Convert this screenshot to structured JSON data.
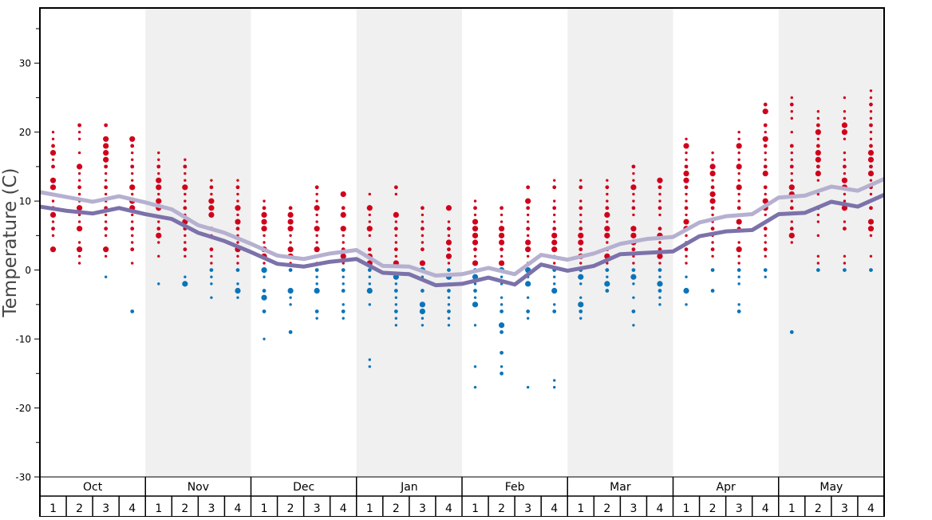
{
  "chart_data": {
    "type": "scatter",
    "ylabel": "Temperature (C)",
    "ylim": [
      -30,
      38
    ],
    "yticks": [
      -30,
      -20,
      -10,
      0,
      10,
      20,
      30
    ],
    "months": [
      "Oct",
      "Nov",
      "Dec",
      "Jan",
      "Feb",
      "Mar",
      "Apr",
      "May"
    ],
    "shaded_months": [
      "Nov",
      "Jan",
      "Mar",
      "May"
    ],
    "week_labels": [
      "1",
      "2",
      "3",
      "4"
    ],
    "colors": {
      "warm": "#d0021b",
      "cold": "#0a74b9",
      "line_light": "#b6b0d0",
      "line_dark": "#7c72aa",
      "shade": "#f0f0f0"
    },
    "line_light": [
      11.3,
      10.6,
      9.9,
      10.7,
      9.8,
      8.8,
      6.5,
      5.4,
      3.8,
      2.1,
      1.6,
      2.4,
      2.9,
      0.6,
      0.5,
      -0.8,
      -0.6,
      0.3,
      -0.6,
      2.2,
      1.5,
      2.4,
      3.8,
      4.5,
      4.8,
      6.9,
      7.8,
      8.1,
      10.5,
      10.8,
      12.1,
      11.5,
      13.2
    ],
    "line_dark": [
      9.2,
      8.6,
      8.2,
      9.0,
      8.1,
      7.4,
      5.4,
      4.2,
      2.6,
      0.9,
      0.5,
      1.2,
      1.6,
      -0.4,
      -0.6,
      -2.2,
      -2.0,
      -1.1,
      -2.1,
      0.8,
      -0.1,
      0.6,
      2.3,
      2.5,
      2.7,
      4.9,
      5.6,
      5.8,
      8.1,
      8.3,
      9.9,
      9.2,
      10.9
    ],
    "weeks": [
      {
        "warm": [
          20,
          19,
          18,
          17,
          16,
          15,
          13,
          12,
          11,
          10,
          9,
          8,
          7,
          6,
          5,
          3
        ],
        "cold": [],
        "large": [
          17,
          13,
          12,
          8,
          3
        ]
      },
      {
        "warm": [
          21,
          20,
          19,
          17,
          15,
          14,
          13,
          12,
          11,
          10,
          9,
          8,
          7,
          6,
          4,
          3,
          2,
          1
        ],
        "cold": [],
        "large": [
          15,
          9,
          6,
          3
        ]
      },
      {
        "warm": [
          21,
          19,
          18,
          17,
          16,
          15,
          14,
          13,
          12,
          11,
          10,
          9,
          8,
          7,
          6,
          5,
          3,
          2
        ],
        "cold": [
          -1
        ],
        "large": [
          19,
          18,
          17,
          16,
          3
        ]
      },
      {
        "warm": [
          19,
          18,
          17,
          16,
          15,
          14,
          13,
          12,
          11,
          10,
          9,
          8,
          7,
          6,
          5,
          4,
          3,
          1
        ],
        "cold": [
          -6
        ],
        "large": [
          19,
          12,
          10,
          9
        ]
      },
      {
        "warm": [
          17,
          16,
          15,
          14,
          13,
          12,
          11,
          10,
          9,
          7,
          6,
          5,
          4,
          2
        ],
        "cold": [
          -2
        ],
        "large": [
          13,
          12,
          10,
          9,
          5
        ]
      },
      {
        "warm": [
          16,
          15,
          14,
          13,
          12,
          11,
          10,
          9,
          8,
          7,
          6,
          5,
          4,
          3,
          2
        ],
        "cold": [
          -1,
          -2
        ],
        "large": [
          12,
          7,
          -2
        ]
      },
      {
        "warm": [
          13,
          12,
          11,
          10,
          9,
          8,
          6,
          5,
          3,
          2,
          1
        ],
        "cold": [
          0,
          -1,
          -2,
          -4
        ],
        "large": [
          10,
          9,
          8
        ]
      },
      {
        "warm": [
          13,
          12,
          11,
          10,
          9,
          8,
          7,
          6,
          5,
          4,
          3,
          2,
          1
        ],
        "cold": [
          0,
          -2,
          -3,
          -4
        ],
        "large": [
          9,
          7,
          3,
          -3
        ]
      },
      {
        "warm": [
          10,
          9,
          8,
          7,
          6,
          5,
          4,
          3,
          2,
          1
        ],
        "cold": [
          0,
          -1,
          -3,
          -4,
          -6,
          -10
        ],
        "large": [
          8,
          7,
          6,
          3,
          2,
          0,
          -4
        ]
      },
      {
        "warm": [
          9,
          8,
          7,
          6,
          5,
          4,
          3,
          2,
          1
        ],
        "cold": [
          0,
          -3,
          -4,
          -5,
          -9
        ],
        "large": [
          8,
          7,
          6,
          3,
          2,
          -3
        ]
      },
      {
        "warm": [
          12,
          11,
          10,
          9,
          8,
          7,
          6,
          5,
          4,
          3,
          2,
          1
        ],
        "cold": [
          0,
          -1,
          -2,
          -3,
          -6,
          -7
        ],
        "large": [
          9,
          6,
          3,
          -3
        ]
      },
      {
        "warm": [
          11,
          9,
          8,
          6,
          5,
          4,
          3,
          2,
          1
        ],
        "cold": [
          0,
          -1,
          -2,
          -3,
          -5,
          -6,
          -7
        ],
        "large": [
          11,
          8,
          6,
          2
        ]
      },
      {
        "warm": [
          11,
          9,
          8,
          7,
          6,
          5,
          3,
          2,
          1
        ],
        "cold": [
          0,
          -1,
          -2,
          -3,
          -5,
          -13,
          -14
        ],
        "large": [
          9,
          6,
          2,
          1,
          -3
        ]
      },
      {
        "warm": [
          12,
          11,
          8,
          7,
          6,
          5,
          4,
          3,
          2,
          1
        ],
        "cold": [
          -1,
          -2,
          -3,
          -4,
          -5,
          -6,
          -7,
          -8
        ],
        "large": [
          8,
          1,
          -1
        ]
      },
      {
        "warm": [
          9,
          8,
          7,
          6,
          5,
          4,
          3,
          1
        ],
        "cold": [
          0,
          -1,
          -3,
          -5,
          -6,
          -7,
          -8
        ],
        "large": [
          1,
          0,
          -5,
          -6
        ]
      },
      {
        "warm": [
          9,
          7,
          6,
          5,
          4,
          3,
          2,
          1
        ],
        "cold": [
          0,
          -1,
          -2,
          -3,
          -4,
          -5,
          -6,
          -7,
          -8
        ],
        "large": [
          9,
          4,
          2,
          -1
        ]
      },
      {
        "warm": [
          10,
          9,
          8,
          7,
          6,
          5,
          4,
          3,
          2,
          1
        ],
        "cold": [
          0,
          -1,
          -2,
          -3,
          -4,
          -5,
          -8,
          -14,
          -17
        ],
        "large": [
          7,
          6,
          5,
          4,
          1,
          -1,
          -5
        ]
      },
      {
        "warm": [
          9,
          8,
          7,
          6,
          5,
          4,
          3,
          2,
          1
        ],
        "cold": [
          0,
          -1,
          -2,
          -4,
          -5,
          -6,
          -8,
          -9,
          -12,
          -14,
          -15
        ],
        "large": [
          6,
          5,
          4,
          1,
          0,
          -8
        ]
      },
      {
        "warm": [
          12,
          10,
          9,
          8,
          7,
          6,
          5,
          4,
          3,
          2,
          1
        ],
        "cold": [
          0,
          -1,
          -2,
          -4,
          -6,
          -7,
          -17
        ],
        "large": [
          10,
          4,
          3,
          0,
          -2
        ]
      },
      {
        "warm": [
          13,
          12,
          10,
          9,
          8,
          7,
          6,
          5,
          4,
          3,
          2,
          1
        ],
        "cold": [
          0,
          -1,
          -2,
          -3,
          -5,
          -6,
          -16,
          -17
        ],
        "large": [
          5,
          4,
          3,
          -3
        ]
      },
      {
        "warm": [
          13,
          12,
          10,
          9,
          8,
          7,
          6,
          5,
          4,
          3,
          2,
          1
        ],
        "cold": [
          0,
          -1,
          -2,
          -4,
          -5,
          -6,
          -7
        ],
        "large": [
          5,
          4,
          2,
          -1,
          -5
        ]
      },
      {
        "warm": [
          13,
          12,
          11,
          10,
          9,
          8,
          7,
          6,
          5,
          4,
          3,
          2,
          1
        ],
        "cold": [
          0,
          -1,
          -2,
          -3
        ],
        "large": [
          8,
          6,
          5,
          2,
          -2
        ]
      },
      {
        "warm": [
          15,
          14,
          13,
          12,
          11,
          10,
          9,
          8,
          6,
          5,
          4,
          3,
          2,
          1
        ],
        "cold": [
          0,
          -1,
          -2,
          -4,
          -6,
          -8
        ],
        "large": [
          12,
          6,
          5,
          4,
          -1
        ]
      },
      {
        "warm": [
          13,
          12,
          11,
          10,
          9,
          8,
          6,
          5,
          4,
          3,
          2,
          1
        ],
        "cold": [
          0,
          -1,
          -2,
          -3,
          -4,
          -5
        ],
        "large": [
          13,
          5,
          2,
          -2
        ]
      },
      {
        "warm": [
          19,
          18,
          17,
          16,
          15,
          14,
          13,
          12,
          11,
          10,
          9,
          8,
          7,
          6,
          5,
          4,
          3,
          2,
          1
        ],
        "cold": [
          -1,
          -3,
          -5
        ],
        "large": [
          18,
          14,
          13,
          7,
          6,
          -3
        ]
      },
      {
        "warm": [
          17,
          16,
          15,
          14,
          13,
          12,
          11,
          10,
          9,
          8,
          7,
          6,
          5,
          4,
          3,
          2
        ],
        "cold": [
          0,
          -3
        ],
        "large": [
          15,
          14,
          11,
          10
        ]
      },
      {
        "warm": [
          20,
          19,
          18,
          17,
          16,
          15,
          14,
          13,
          12,
          11,
          10,
          9,
          8,
          7,
          6,
          4,
          3,
          2,
          1
        ],
        "cold": [
          0,
          -1,
          -2,
          -5,
          -6
        ],
        "large": [
          18,
          15,
          12,
          7,
          3
        ]
      },
      {
        "warm": [
          24,
          23,
          21,
          20,
          19,
          18,
          17,
          16,
          15,
          14,
          12,
          11,
          10,
          9,
          8,
          7,
          6,
          5,
          4,
          3,
          2
        ],
        "cold": [
          0,
          -1
        ],
        "large": [
          23,
          19,
          14,
          10,
          9
        ]
      },
      {
        "warm": [
          25,
          24,
          23,
          22,
          20,
          18,
          17,
          16,
          15,
          14,
          13,
          12,
          11,
          10,
          9,
          7,
          6,
          5,
          4
        ],
        "cold": [
          -9
        ],
        "large": [
          5,
          12,
          11
        ]
      },
      {
        "warm": [
          23,
          22,
          21,
          20,
          19,
          18,
          17,
          16,
          15,
          14,
          13,
          11,
          9,
          8,
          7,
          5,
          2,
          1
        ],
        "cold": [
          0
        ],
        "large": [
          20,
          17,
          16,
          14
        ]
      },
      {
        "warm": [
          25,
          23,
          22,
          21,
          20,
          19,
          17,
          16,
          15,
          14,
          13,
          12,
          11,
          10,
          9,
          7,
          6,
          2,
          1
        ],
        "cold": [
          0
        ],
        "large": [
          21,
          20,
          13,
          12,
          9
        ]
      },
      {
        "warm": [
          26,
          25,
          24,
          23,
          22,
          21,
          20,
          19,
          18,
          17,
          16,
          15,
          14,
          13,
          12,
          11,
          10,
          9,
          7,
          6,
          5,
          2
        ],
        "cold": [
          0
        ],
        "large": [
          17,
          16,
          14,
          7,
          6
        ]
      }
    ]
  }
}
